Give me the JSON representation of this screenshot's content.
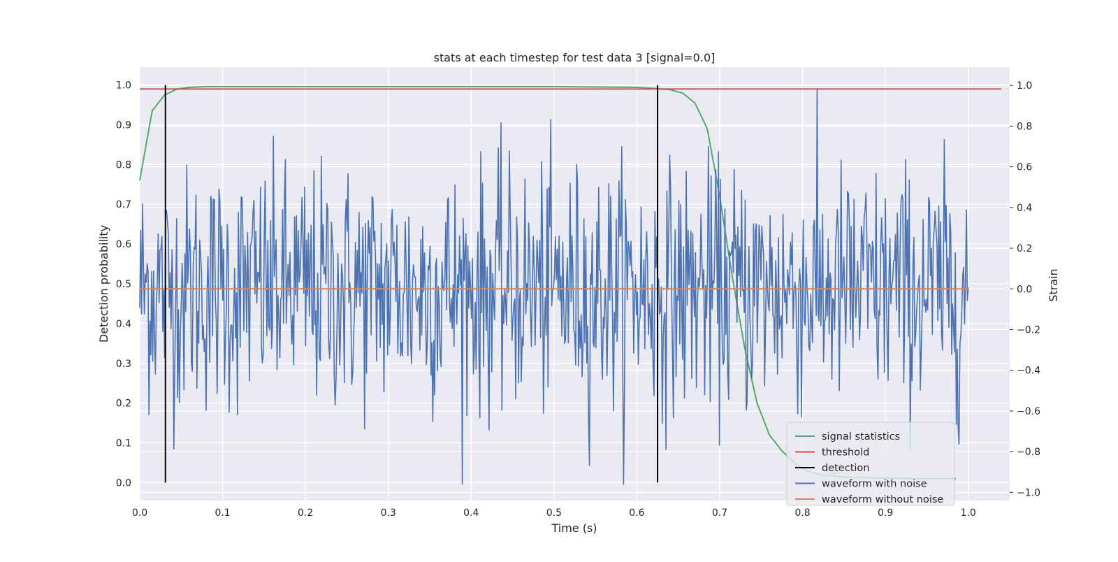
{
  "chart_data": {
    "type": "line",
    "title": "stats at each timestep for test data 3 [signal=0.0]",
    "xlabel": "Time (s)",
    "ylabel_left": "Detection probability",
    "ylabel_right": "Strain",
    "xlim": [
      0.0,
      1.05
    ],
    "ylim_left": [
      -0.045,
      1.045
    ],
    "ylim_right": [
      -1.04,
      1.09
    ],
    "x_ticks": [
      "0.0",
      "0.1",
      "0.2",
      "0.3",
      "0.4",
      "0.5",
      "0.6",
      "0.7",
      "0.8",
      "0.9",
      "1.0"
    ],
    "y_left_ticks": [
      "0.0",
      "0.1",
      "0.2",
      "0.3",
      "0.4",
      "0.5",
      "0.6",
      "0.7",
      "0.8",
      "0.9",
      "1.0"
    ],
    "y_right_ticks": [
      "−1.0",
      "−0.8",
      "−0.6",
      "−0.4",
      "−0.2",
      "0.0",
      "0.2",
      "0.4",
      "0.6",
      "0.8",
      "1.0"
    ],
    "grid": true,
    "legend_position": "lower-right",
    "background_color": "#eaeaf2",
    "series": [
      {
        "name": "signal statistics",
        "axis": "left",
        "color": "#55a868",
        "x": [
          0.0,
          0.015,
          0.03,
          0.045,
          0.06,
          0.08,
          0.1,
          0.2,
          0.3,
          0.4,
          0.5,
          0.6,
          0.625,
          0.64,
          0.655,
          0.67,
          0.685,
          0.7,
          0.715,
          0.73,
          0.745,
          0.76,
          0.775,
          0.79,
          0.805,
          0.82,
          0.85,
          0.9,
          0.95,
          0.985
        ],
        "y": [
          0.76,
          0.935,
          0.975,
          0.99,
          0.994,
          0.996,
          0.996,
          0.996,
          0.996,
          0.996,
          0.996,
          0.994,
          0.991,
          0.988,
          0.98,
          0.955,
          0.89,
          0.72,
          0.52,
          0.34,
          0.2,
          0.12,
          0.08,
          0.05,
          0.03,
          0.02,
          0.014,
          0.011,
          0.01,
          0.01
        ]
      },
      {
        "name": "threshold",
        "axis": "left",
        "color": "#c44e52",
        "x": [
          0.0,
          1.04
        ],
        "y": [
          0.99,
          0.99
        ]
      },
      {
        "name": "detection",
        "axis": "left",
        "color": "#000000",
        "segments": [
          {
            "x": 0.031,
            "y0": 0.0,
            "y1": 1.0
          },
          {
            "x": 0.625,
            "y0": 0.0,
            "y1": 1.0
          }
        ]
      },
      {
        "name": "waveform with noise",
        "axis": "right",
        "color": "#4c72b0",
        "x_start": 0.0,
        "x_end": 1.0,
        "n_points": 900,
        "amplitude_std": 0.3,
        "y_min": -0.96,
        "y_max": 1.0
      },
      {
        "name": "waveform without noise",
        "axis": "right",
        "color": "#dd8452",
        "x": [
          0.0,
          1.0
        ],
        "y": [
          0.0,
          0.0
        ]
      }
    ]
  }
}
